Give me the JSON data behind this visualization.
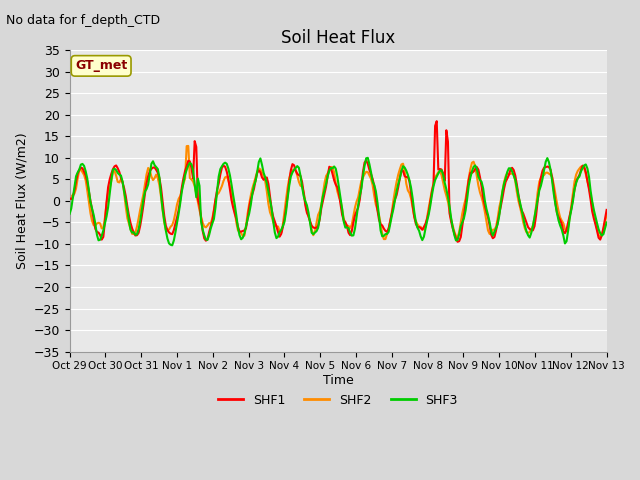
{
  "title": "Soil Heat Flux",
  "suptitle": "No data for f_depth_CTD",
  "ylabel": "Soil Heat Flux (W/m2)",
  "xlabel": "Time",
  "box_label": "GT_met",
  "ylim": [
    -35,
    35
  ],
  "yticks": [
    -35,
    -30,
    -25,
    -20,
    -15,
    -10,
    -5,
    0,
    5,
    10,
    15,
    20,
    25,
    30,
    35
  ],
  "xtick_labels": [
    "Oct 29",
    "Oct 30",
    "Oct 31",
    "Nov 1",
    "Nov 2",
    "Nov 3",
    "Nov 4",
    "Nov 5",
    "Nov 6",
    "Nov 7",
    "Nov 8",
    "Nov 9",
    "Nov 10",
    "Nov 11",
    "Nov 12",
    "Nov 13"
  ],
  "shf1_color": "#ff0000",
  "shf2_color": "#ff8c00",
  "shf3_color": "#00cc00",
  "bg_color": "#e8e8e8",
  "plot_bg_color": "#e8e8e8",
  "grid_color": "#ffffff",
  "legend_labels": [
    "SHF1",
    "SHF2",
    "SHF3"
  ],
  "line_width": 1.5,
  "n_points": 336
}
